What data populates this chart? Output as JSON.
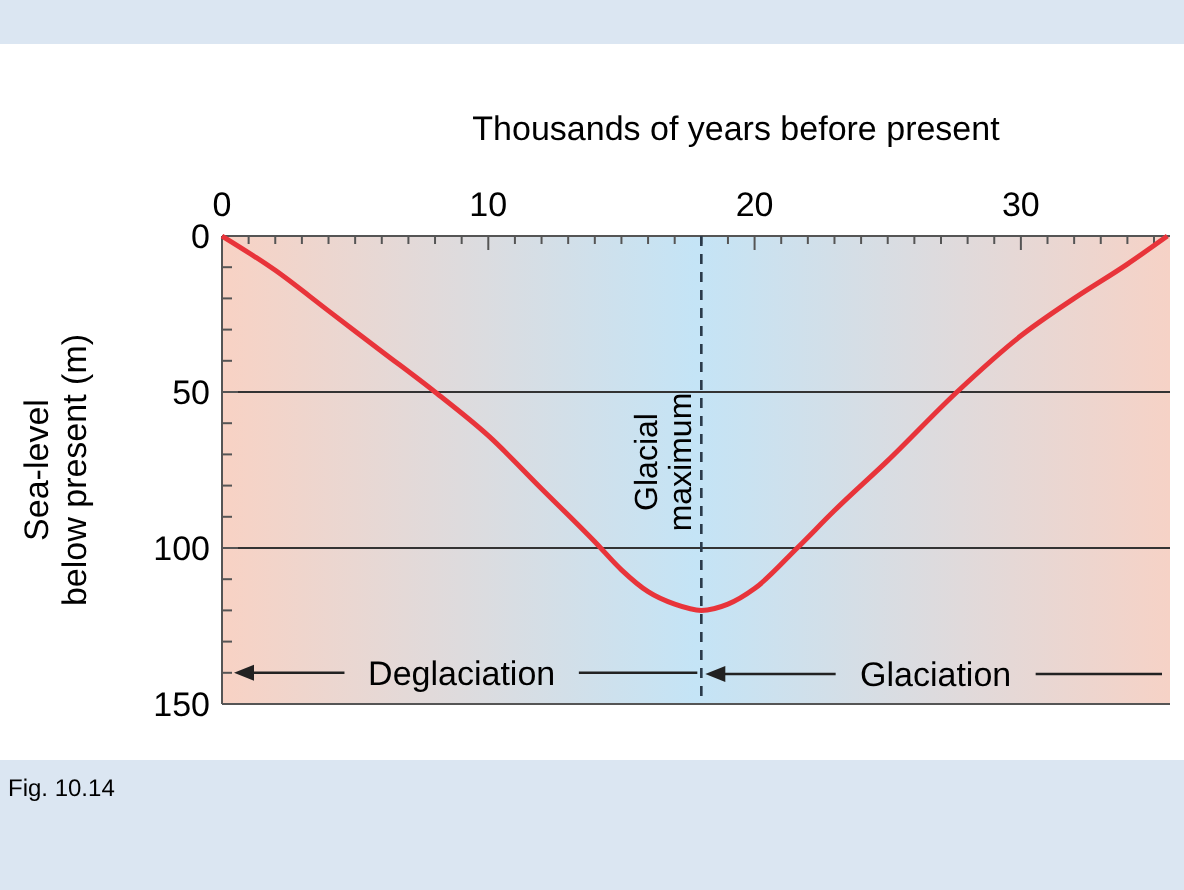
{
  "chart_data": {
    "type": "line",
    "xlabel": "Thousands of years before present",
    "ylabel": "Sea-level\nbelow present (m)",
    "x": [
      0,
      2,
      4,
      6,
      8,
      10,
      12,
      14,
      15,
      16,
      17,
      18,
      19,
      20,
      21.6,
      23,
      25,
      27.6,
      30,
      32,
      34,
      35.5
    ],
    "series": [
      {
        "color": "#e8343a",
        "values": [
          0,
          11,
          24,
          37,
          50,
          64,
          81,
          98,
          107,
          114,
          118,
          120,
          118,
          113,
          100,
          88,
          72,
          50,
          32,
          20,
          9,
          0
        ]
      }
    ],
    "xlim": [
      0,
      35.6
    ],
    "xticks": [
      0,
      {
        "value": 1,
        "label": null
      },
      {
        "value": 2,
        "label": null
      },
      {
        "value": 3,
        "label": null
      },
      {
        "value": 4,
        "label": null
      },
      {
        "value": 5,
        "label": null
      },
      {
        "value": 6,
        "label": null
      },
      {
        "value": 7,
        "label": null
      },
      {
        "value": 8,
        "label": null
      },
      {
        "value": 9,
        "label": null
      },
      10,
      {
        "value": 11,
        "label": null
      },
      {
        "value": 12,
        "label": null
      },
      {
        "value": 13,
        "label": null
      },
      {
        "value": 14,
        "label": null
      },
      {
        "value": 15,
        "label": null
      },
      {
        "value": 16,
        "label": null
      },
      {
        "value": 17,
        "label": null
      },
      {
        "value": 18,
        "label": null
      },
      {
        "value": 19,
        "label": null
      },
      20,
      {
        "value": 21,
        "label": null
      },
      {
        "value": 22,
        "label": null
      },
      {
        "value": 23,
        "label": null
      },
      {
        "value": 24,
        "label": null
      },
      {
        "value": 25,
        "label": null
      },
      {
        "value": 26,
        "label": null
      },
      {
        "value": 27,
        "label": null
      },
      {
        "value": 28,
        "label": null
      },
      {
        "value": 29,
        "label": null
      },
      30,
      {
        "value": 31,
        "label": null
      },
      {
        "value": 32,
        "label": null
      },
      {
        "value": 33,
        "label": null
      },
      {
        "value": 34,
        "label": null
      },
      {
        "value": 35,
        "label": null
      }
    ],
    "ylim": [
      150,
      0
    ],
    "yticks": [
      0,
      {
        "value": 10,
        "label": null
      },
      {
        "value": 20,
        "label": null
      },
      {
        "value": 30,
        "label": null
      },
      {
        "value": 40,
        "label": null
      },
      50,
      {
        "value": 60,
        "label": null
      },
      {
        "value": 70,
        "label": null
      },
      {
        "value": 80,
        "label": null
      },
      {
        "value": 90,
        "label": null
      },
      100,
      {
        "value": 110,
        "label": null
      },
      {
        "value": 120,
        "label": null
      },
      {
        "value": 130,
        "label": null
      },
      {
        "value": 140,
        "label": null
      },
      150
    ],
    "grid": "y",
    "marker": "none",
    "line_style": "solid",
    "ref_lines": [
      {
        "axis": "x",
        "value": 18,
        "label": "Glacial\nmaximum",
        "line_style": "dashed",
        "color": "#2a3a4a"
      }
    ],
    "annotations": [
      {
        "text": "Deglaciation",
        "x": 18,
        "y": 140
      },
      "Glaciation",
      "Fig. 10.14"
    ]
  }
}
